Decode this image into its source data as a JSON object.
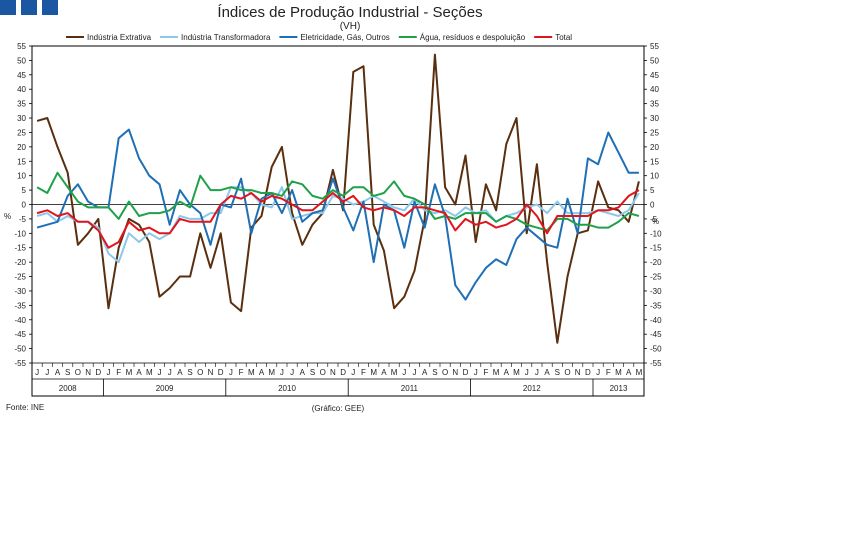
{
  "header": {
    "logo_name": "gee-logo"
  },
  "footer": {
    "source": "Fonte: INE",
    "credit": "(Gráfico: GEE)"
  },
  "colors": {
    "Indústria Extrativa": "#5a2f0f",
    "Indústria Transformadora": "#8cc8ea",
    "Eletricidade, Gás, Outros": "#1f6fb4",
    "Água, resíduos e despoluição": "#1fa14a",
    "Total": "#e1141c"
  },
  "chart_data": {
    "type": "line",
    "title": "Índices de Produção Industrial - Seções",
    "subtitle": "(VH)",
    "ylabel_left": "%",
    "ylabel_right": "%",
    "ylim": [
      -55,
      55
    ],
    "yticks": [
      -55,
      -50,
      -45,
      -40,
      -35,
      -30,
      -25,
      -20,
      -15,
      -10,
      -5,
      0,
      5,
      10,
      15,
      20,
      25,
      30,
      35,
      40,
      45,
      50,
      55
    ],
    "grid": false,
    "legend": "top",
    "months": [
      "J",
      "J",
      "A",
      "S",
      "O",
      "N",
      "D",
      "J",
      "F",
      "M",
      "A",
      "M",
      "J",
      "J",
      "A",
      "S",
      "O",
      "N",
      "D",
      "J",
      "F",
      "M",
      "A",
      "M",
      "J",
      "J",
      "A",
      "S",
      "O",
      "N",
      "D",
      "J",
      "F",
      "M",
      "A",
      "M",
      "J",
      "J",
      "A",
      "S",
      "O",
      "N",
      "D",
      "J",
      "F",
      "M",
      "A",
      "M",
      "J",
      "J",
      "A",
      "S",
      "O",
      "N",
      "D",
      "J",
      "F",
      "M",
      "A",
      "M"
    ],
    "years": [
      {
        "label": "2008",
        "start": 0,
        "count": 7
      },
      {
        "label": "2009",
        "start": 7,
        "count": 12
      },
      {
        "label": "2010",
        "start": 19,
        "count": 12
      },
      {
        "label": "2011",
        "start": 31,
        "count": 12
      },
      {
        "label": "2012",
        "start": 43,
        "count": 12
      },
      {
        "label": "2013",
        "start": 55,
        "count": 5
      }
    ],
    "series": [
      {
        "name": "Indústria Extrativa",
        "values": [
          29,
          30,
          20,
          11,
          -14,
          -10,
          -5,
          -36,
          -15,
          -5,
          -7,
          -13,
          -32,
          -29,
          -25,
          -25,
          -10,
          -22,
          -10,
          -34,
          -37,
          -8,
          -4,
          13,
          20,
          -3,
          -14,
          -7,
          -3,
          12,
          -2,
          46,
          48,
          -7,
          -16,
          -36,
          -32,
          -23,
          -5,
          52,
          6,
          0,
          17,
          -13,
          7,
          -2,
          21,
          30,
          -10,
          14,
          -20,
          -48,
          -25,
          -10,
          -9,
          8,
          -1,
          -2,
          -6,
          8
        ]
      },
      {
        "name": "Indústria Transformadora",
        "values": [
          -4,
          -3,
          -6,
          -4,
          -6,
          -6,
          -8,
          -17,
          -20,
          -10,
          -13,
          -10,
          -12,
          -10,
          -4,
          -5,
          -5,
          -3,
          -3,
          6,
          6,
          4,
          0,
          -1,
          6,
          -5,
          -4,
          -3,
          -3,
          3,
          2,
          0,
          1,
          3,
          1,
          -1,
          -2,
          2,
          -2,
          -3,
          -2,
          -4,
          -1,
          -3,
          -2,
          -6,
          -4,
          -3,
          -1,
          0,
          -3,
          1,
          -3,
          -3,
          -3,
          -2,
          -3,
          -4,
          -2,
          4
        ]
      },
      {
        "name": "Eletricidade, Gás, Outros",
        "values": [
          -8,
          -7,
          -6,
          3,
          7,
          1,
          -1,
          -1,
          23,
          26,
          16,
          10,
          7,
          -7,
          5,
          0,
          -3,
          -14,
          0,
          -1,
          9,
          -10,
          2,
          4,
          -3,
          5,
          -6,
          -3,
          -2,
          9,
          -1,
          -9,
          1,
          -20,
          0,
          -2,
          -15,
          1,
          -8,
          7,
          -4,
          -28,
          -33,
          -27,
          -22,
          -19,
          -21,
          -12,
          -8,
          -11,
          -14,
          -15,
          2,
          -10,
          16,
          14,
          25,
          18,
          11,
          11
        ]
      },
      {
        "name": "Água, resíduos e despoluição",
        "values": [
          6,
          4,
          11,
          6,
          1,
          -1,
          -1,
          -1,
          -5,
          1,
          -4,
          -3,
          -3,
          -2,
          1,
          -1,
          10,
          5,
          5,
          6,
          5,
          5,
          4,
          4,
          3,
          8,
          7,
          3,
          2,
          5,
          3,
          6,
          6,
          3,
          4,
          8,
          3,
          2,
          0,
          -5,
          -4,
          -5,
          -3,
          -3,
          -3,
          -6,
          -4,
          -5,
          -7,
          -8,
          -9,
          -5,
          -5,
          -7,
          -7,
          -8,
          -8,
          -6,
          -3,
          -4
        ]
      },
      {
        "name": "Total",
        "values": [
          -3,
          -2,
          -4,
          -3,
          -6,
          -6,
          -9,
          -15,
          -13,
          -6,
          -9,
          -8,
          -10,
          -10,
          -5,
          -6,
          -6,
          -6,
          0,
          3,
          2,
          4,
          1,
          3,
          2,
          0,
          -2,
          -2,
          1,
          4,
          1,
          3,
          -1,
          -2,
          -1,
          -2,
          -4,
          -1,
          -1,
          -2,
          -3,
          -9,
          -5,
          -7,
          -6,
          -8,
          -7,
          -5,
          0,
          -4,
          -10,
          -4,
          -4,
          -4,
          -4,
          -2,
          -2,
          -1,
          3,
          5
        ]
      }
    ]
  }
}
